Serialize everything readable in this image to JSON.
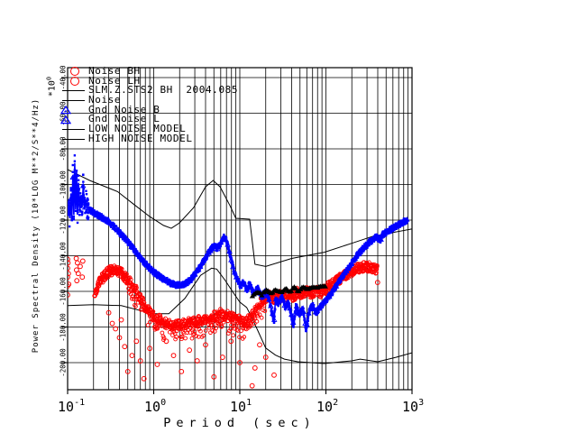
{
  "colors": {
    "background": "#ffffff",
    "red": "#ff0000",
    "blue": "#0000ff",
    "black": "#000000"
  },
  "legend": {
    "items": [
      {
        "label": "Noise BH",
        "marker": "circle",
        "color": "#ff0000"
      },
      {
        "label": "Noise LH",
        "marker": "circle",
        "color": "#ff0000"
      },
      {
        "label": "SLM.Z.STS2 BH  2004.085",
        "marker": "dash",
        "color": "#000000"
      },
      {
        "label": "Noise",
        "marker": "dash",
        "color": "#000000"
      },
      {
        "label": "Gnd Noise B",
        "marker": "triangle",
        "color": "#0000ff"
      },
      {
        "label": "Gnd Noise L",
        "marker": "triangle",
        "color": "#0000ff"
      },
      {
        "label": "LOW NOISE MODEL",
        "marker": "dash",
        "color": "#000000"
      },
      {
        "label": "HIGH NOISE MODEL",
        "marker": "dash",
        "color": "#000000"
      }
    ]
  },
  "axes": {
    "x": {
      "title": "Period (sec)",
      "ticks": [
        {
          "base": "10",
          "exp": "-1"
        },
        {
          "base": "10",
          "exp": "0"
        },
        {
          "base": "10",
          "exp": "1"
        },
        {
          "base": "10",
          "exp": "2"
        },
        {
          "base": "10",
          "exp": "3"
        }
      ]
    },
    "y": {
      "title": "Power Spectral Density (10*LOG M**2/S**4/Hz)",
      "scale_base": "*10",
      "scale_exp": "0",
      "ticks": [
        "-40.00",
        "-60.00",
        "-80.00",
        "-100.00",
        "-120.00",
        "-140.00",
        "-160.00",
        "-180.00",
        "-200.00"
      ]
    }
  },
  "chart_data": {
    "type": "scatter",
    "title": "SLM.Z.STS2 BH 2004.085",
    "xlabel": "Period (sec)",
    "ylabel": "Power Spectral Density (10*LOG M**2/S**4/Hz) *10^0",
    "x_log10_range": [
      -1,
      3
    ],
    "ylim": [
      -215,
      -34
    ],
    "yticks": [
      -40,
      -60,
      -80,
      -100,
      -120,
      -140,
      -160,
      -180,
      -200
    ],
    "grid": true,
    "legend_position": "top-left-inside",
    "series": [
      {
        "name": "HIGH NOISE MODEL",
        "type": "line",
        "color": "#000000",
        "points": [
          [
            0.1,
            -91.6
          ],
          [
            0.18,
            -97.7
          ],
          [
            0.38,
            -104
          ],
          [
            0.6,
            -111.5
          ],
          [
            0.9,
            -118
          ],
          [
            1.3,
            -123
          ],
          [
            1.6,
            -124.6
          ],
          [
            2.0,
            -121.5
          ],
          [
            2.9,
            -113
          ],
          [
            4.0,
            -101.3
          ],
          [
            4.9,
            -97.7
          ],
          [
            5.9,
            -101.3
          ],
          [
            7.7,
            -112
          ],
          [
            9.0,
            -119
          ],
          [
            13.0,
            -119.5
          ],
          [
            15.0,
            -144.8
          ],
          [
            20,
            -146
          ],
          [
            40,
            -141.5
          ],
          [
            96,
            -138
          ],
          [
            200,
            -133
          ],
          [
            354,
            -129
          ],
          [
            990,
            -125
          ]
        ]
      },
      {
        "name": "LOW NOISE MODEL",
        "type": "line",
        "color": "#000000",
        "points": [
          [
            0.1,
            -168
          ],
          [
            0.2,
            -167.5
          ],
          [
            0.42,
            -168
          ],
          [
            0.8,
            -171.5
          ],
          [
            1.0,
            -172.5
          ],
          [
            1.5,
            -172.5
          ],
          [
            2.3,
            -164
          ],
          [
            3.5,
            -151
          ],
          [
            4.7,
            -147
          ],
          [
            5.4,
            -147.5
          ],
          [
            6.8,
            -154
          ],
          [
            8.2,
            -160
          ],
          [
            10,
            -166
          ],
          [
            12,
            -169
          ],
          [
            14,
            -175.5
          ],
          [
            16,
            -181.5
          ],
          [
            20,
            -191.8
          ],
          [
            26,
            -195.8
          ],
          [
            33,
            -198
          ],
          [
            47,
            -199.5
          ],
          [
            96,
            -200.5
          ],
          [
            200,
            -199
          ],
          [
            250,
            -198
          ],
          [
            400,
            -199.5
          ],
          [
            650,
            -197
          ],
          [
            1000,
            -194.5
          ]
        ]
      },
      {
        "name": "Noise BH / Noise LH",
        "type": "scatter-band",
        "marker": "circle",
        "color": "#ff0000",
        "band_halfwidth_db": 2.8,
        "down_tail_db": 9,
        "down_tail_range": [
          0.5,
          20
        ],
        "points": [
          [
            0.205,
            -163
          ],
          [
            0.22,
            -158
          ],
          [
            0.24,
            -154
          ],
          [
            0.27,
            -151
          ],
          [
            0.3,
            -149
          ],
          [
            0.34,
            -148
          ],
          [
            0.38,
            -148.5
          ],
          [
            0.43,
            -150
          ],
          [
            0.48,
            -152.5
          ],
          [
            0.55,
            -156
          ],
          [
            0.63,
            -160
          ],
          [
            0.72,
            -165
          ],
          [
            0.82,
            -169.5
          ],
          [
            0.95,
            -173
          ],
          [
            1.1,
            -175.5
          ],
          [
            1.3,
            -177
          ],
          [
            1.55,
            -178.5
          ],
          [
            1.85,
            -179
          ],
          [
            2.2,
            -178.5
          ],
          [
            2.7,
            -177.5
          ],
          [
            3.3,
            -176.5
          ],
          [
            4.0,
            -175.5
          ],
          [
            5.0,
            -174
          ],
          [
            6.0,
            -172.5
          ],
          [
            7.0,
            -173.5
          ],
          [
            8.5,
            -175
          ],
          [
            10,
            -176.5
          ],
          [
            11.5,
            -177.5
          ],
          [
            13,
            -175.5
          ],
          [
            15,
            -171
          ],
          [
            17,
            -166.5
          ],
          [
            19,
            -164
          ],
          [
            22,
            -162.5
          ],
          [
            25,
            -164
          ],
          [
            29,
            -161.5
          ],
          [
            33,
            -163.5
          ],
          [
            37,
            -161
          ],
          [
            42,
            -163
          ],
          [
            47,
            -160.5
          ],
          [
            53,
            -162
          ],
          [
            60,
            -160
          ],
          [
            68,
            -161
          ],
          [
            77,
            -159.5
          ],
          [
            87,
            -160.5
          ],
          [
            98,
            -159
          ],
          [
            110,
            -157
          ],
          [
            125,
            -155.5
          ],
          [
            140,
            -153.5
          ],
          [
            160,
            -151.5
          ],
          [
            185,
            -149.5
          ],
          [
            215,
            -148
          ],
          [
            250,
            -146.8
          ],
          [
            290,
            -146.2
          ],
          [
            320,
            -146
          ],
          [
            350,
            -146.6
          ],
          [
            375,
            -147.3
          ],
          [
            395,
            -148
          ]
        ],
        "left_cluster": [
          [
            0.1,
            -142
          ],
          [
            0.1,
            -147
          ],
          [
            0.1,
            -152
          ],
          [
            0.1,
            -157
          ],
          [
            0.1,
            -162
          ],
          [
            0.101,
            -144
          ],
          [
            0.102,
            -150
          ],
          [
            0.103,
            -156
          ],
          [
            0.126,
            -141.5
          ],
          [
            0.127,
            -148
          ],
          [
            0.128,
            -154
          ],
          [
            0.13,
            -144
          ],
          [
            0.133,
            -150
          ],
          [
            0.14,
            -146
          ],
          [
            0.148,
            -152
          ],
          [
            0.15,
            -143
          ]
        ],
        "outliers": [
          [
            0.3,
            -172
          ],
          [
            0.33,
            -178
          ],
          [
            0.36,
            -181
          ],
          [
            0.4,
            -186
          ],
          [
            0.42,
            -176
          ],
          [
            0.46,
            -191
          ],
          [
            0.5,
            -205
          ],
          [
            0.56,
            -196
          ],
          [
            0.63,
            -188
          ],
          [
            0.7,
            -199
          ],
          [
            0.77,
            -209
          ],
          [
            0.9,
            -192
          ],
          [
            1.1,
            -201
          ],
          [
            1.4,
            -188
          ],
          [
            1.7,
            -196
          ],
          [
            2.1,
            -205
          ],
          [
            2.6,
            -193
          ],
          [
            3.2,
            -199
          ],
          [
            4.0,
            -190
          ],
          [
            5.0,
            -208
          ],
          [
            6.3,
            -197
          ],
          [
            7.9,
            -188
          ],
          [
            10,
            -200
          ],
          [
            13.9,
            -213
          ],
          [
            15,
            -203
          ],
          [
            17,
            -190
          ],
          [
            20,
            -197
          ],
          [
            25,
            -207
          ],
          [
            381,
            -149.5
          ],
          [
            398,
            -155
          ]
        ]
      },
      {
        "name": "Gnd Noise B / Gnd Noise L",
        "type": "scatter-band",
        "marker": "triangle",
        "color": "#0000ff",
        "band_halfwidth_db": 1.8,
        "spike_zone": {
          "from": 0.103,
          "to": 0.175,
          "extra_db": 6
        },
        "points": [
          [
            0.1,
            -116
          ],
          [
            0.103,
            -111
          ],
          [
            0.106,
            -119
          ],
          [
            0.109,
            -105
          ],
          [
            0.112,
            -118
          ],
          [
            0.115,
            -95
          ],
          [
            0.118,
            -117
          ],
          [
            0.121,
            -88
          ],
          [
            0.124,
            -114
          ],
          [
            0.127,
            -92
          ],
          [
            0.13,
            -117
          ],
          [
            0.134,
            -99
          ],
          [
            0.138,
            -115
          ],
          [
            0.142,
            -106
          ],
          [
            0.147,
            -113
          ],
          [
            0.152,
            -100
          ],
          [
            0.157,
            -114
          ],
          [
            0.163,
            -110
          ],
          [
            0.17,
            -113
          ],
          [
            0.18,
            -114
          ],
          [
            0.195,
            -115.5
          ],
          [
            0.21,
            -116.5
          ],
          [
            0.23,
            -117.5
          ],
          [
            0.26,
            -119
          ],
          [
            0.3,
            -121
          ],
          [
            0.35,
            -124
          ],
          [
            0.4,
            -127
          ],
          [
            0.46,
            -130
          ],
          [
            0.53,
            -133.5
          ],
          [
            0.61,
            -137.5
          ],
          [
            0.7,
            -141
          ],
          [
            0.8,
            -144.5
          ],
          [
            0.92,
            -147.5
          ],
          [
            1.05,
            -150
          ],
          [
            1.2,
            -152
          ],
          [
            1.4,
            -154
          ],
          [
            1.6,
            -155.5
          ],
          [
            1.85,
            -156.5
          ],
          [
            2.1,
            -156.5
          ],
          [
            2.4,
            -155.5
          ],
          [
            2.8,
            -152.5
          ],
          [
            3.2,
            -148.5
          ],
          [
            3.7,
            -144
          ],
          [
            4.2,
            -139.5
          ],
          [
            4.7,
            -136
          ],
          [
            5.1,
            -134.5
          ],
          [
            5.5,
            -136
          ],
          [
            5.9,
            -133.5
          ],
          [
            6.3,
            -130.5
          ],
          [
            6.6,
            -129.5
          ],
          [
            7.0,
            -131.5
          ],
          [
            7.4,
            -136
          ],
          [
            7.9,
            -142
          ],
          [
            8.5,
            -148
          ],
          [
            9.3,
            -153
          ],
          [
            10.2,
            -157
          ],
          [
            11,
            -155
          ],
          [
            12,
            -159
          ],
          [
            13,
            -156
          ],
          [
            14.5,
            -161
          ],
          [
            16,
            -158
          ],
          [
            18,
            -163
          ],
          [
            20,
            -160
          ],
          [
            22,
            -165
          ],
          [
            25,
            -177
          ],
          [
            26,
            -164
          ],
          [
            28,
            -167
          ],
          [
            31,
            -163
          ],
          [
            34,
            -170
          ],
          [
            36,
            -166
          ],
          [
            39,
            -172
          ],
          [
            42,
            -179
          ],
          [
            45,
            -168
          ],
          [
            49,
            -173
          ],
          [
            54,
            -169
          ],
          [
            59,
            -182
          ],
          [
            64,
            -171
          ],
          [
            70,
            -168
          ],
          [
            77,
            -172
          ],
          [
            85,
            -169
          ],
          [
            93,
            -167
          ],
          [
            105,
            -164
          ],
          [
            120,
            -160
          ],
          [
            140,
            -155
          ],
          [
            165,
            -150
          ],
          [
            195,
            -145
          ],
          [
            230,
            -140
          ],
          [
            270,
            -136
          ],
          [
            320,
            -132.5
          ],
          [
            380,
            -129.5
          ],
          [
            430,
            -131
          ],
          [
            460,
            -128
          ],
          [
            520,
            -126.5
          ],
          [
            600,
            -124.5
          ],
          [
            700,
            -122.5
          ],
          [
            800,
            -121
          ],
          [
            880,
            -120
          ]
        ]
      },
      {
        "name": "Noise",
        "type": "line-markers",
        "marker": "triangle",
        "color": "#000000",
        "points": [
          [
            14,
            -162.5
          ],
          [
            16,
            -160.5
          ],
          [
            18,
            -162
          ],
          [
            20,
            -159.5
          ],
          [
            23,
            -161.5
          ],
          [
            26,
            -159
          ],
          [
            30,
            -161
          ],
          [
            34,
            -158.5
          ],
          [
            38,
            -160.5
          ],
          [
            43,
            -158
          ],
          [
            48,
            -160
          ],
          [
            55,
            -157.5
          ],
          [
            62,
            -159
          ],
          [
            70,
            -157.5
          ],
          [
            80,
            -158.5
          ],
          [
            90,
            -157
          ],
          [
            100,
            -158
          ]
        ]
      }
    ]
  }
}
